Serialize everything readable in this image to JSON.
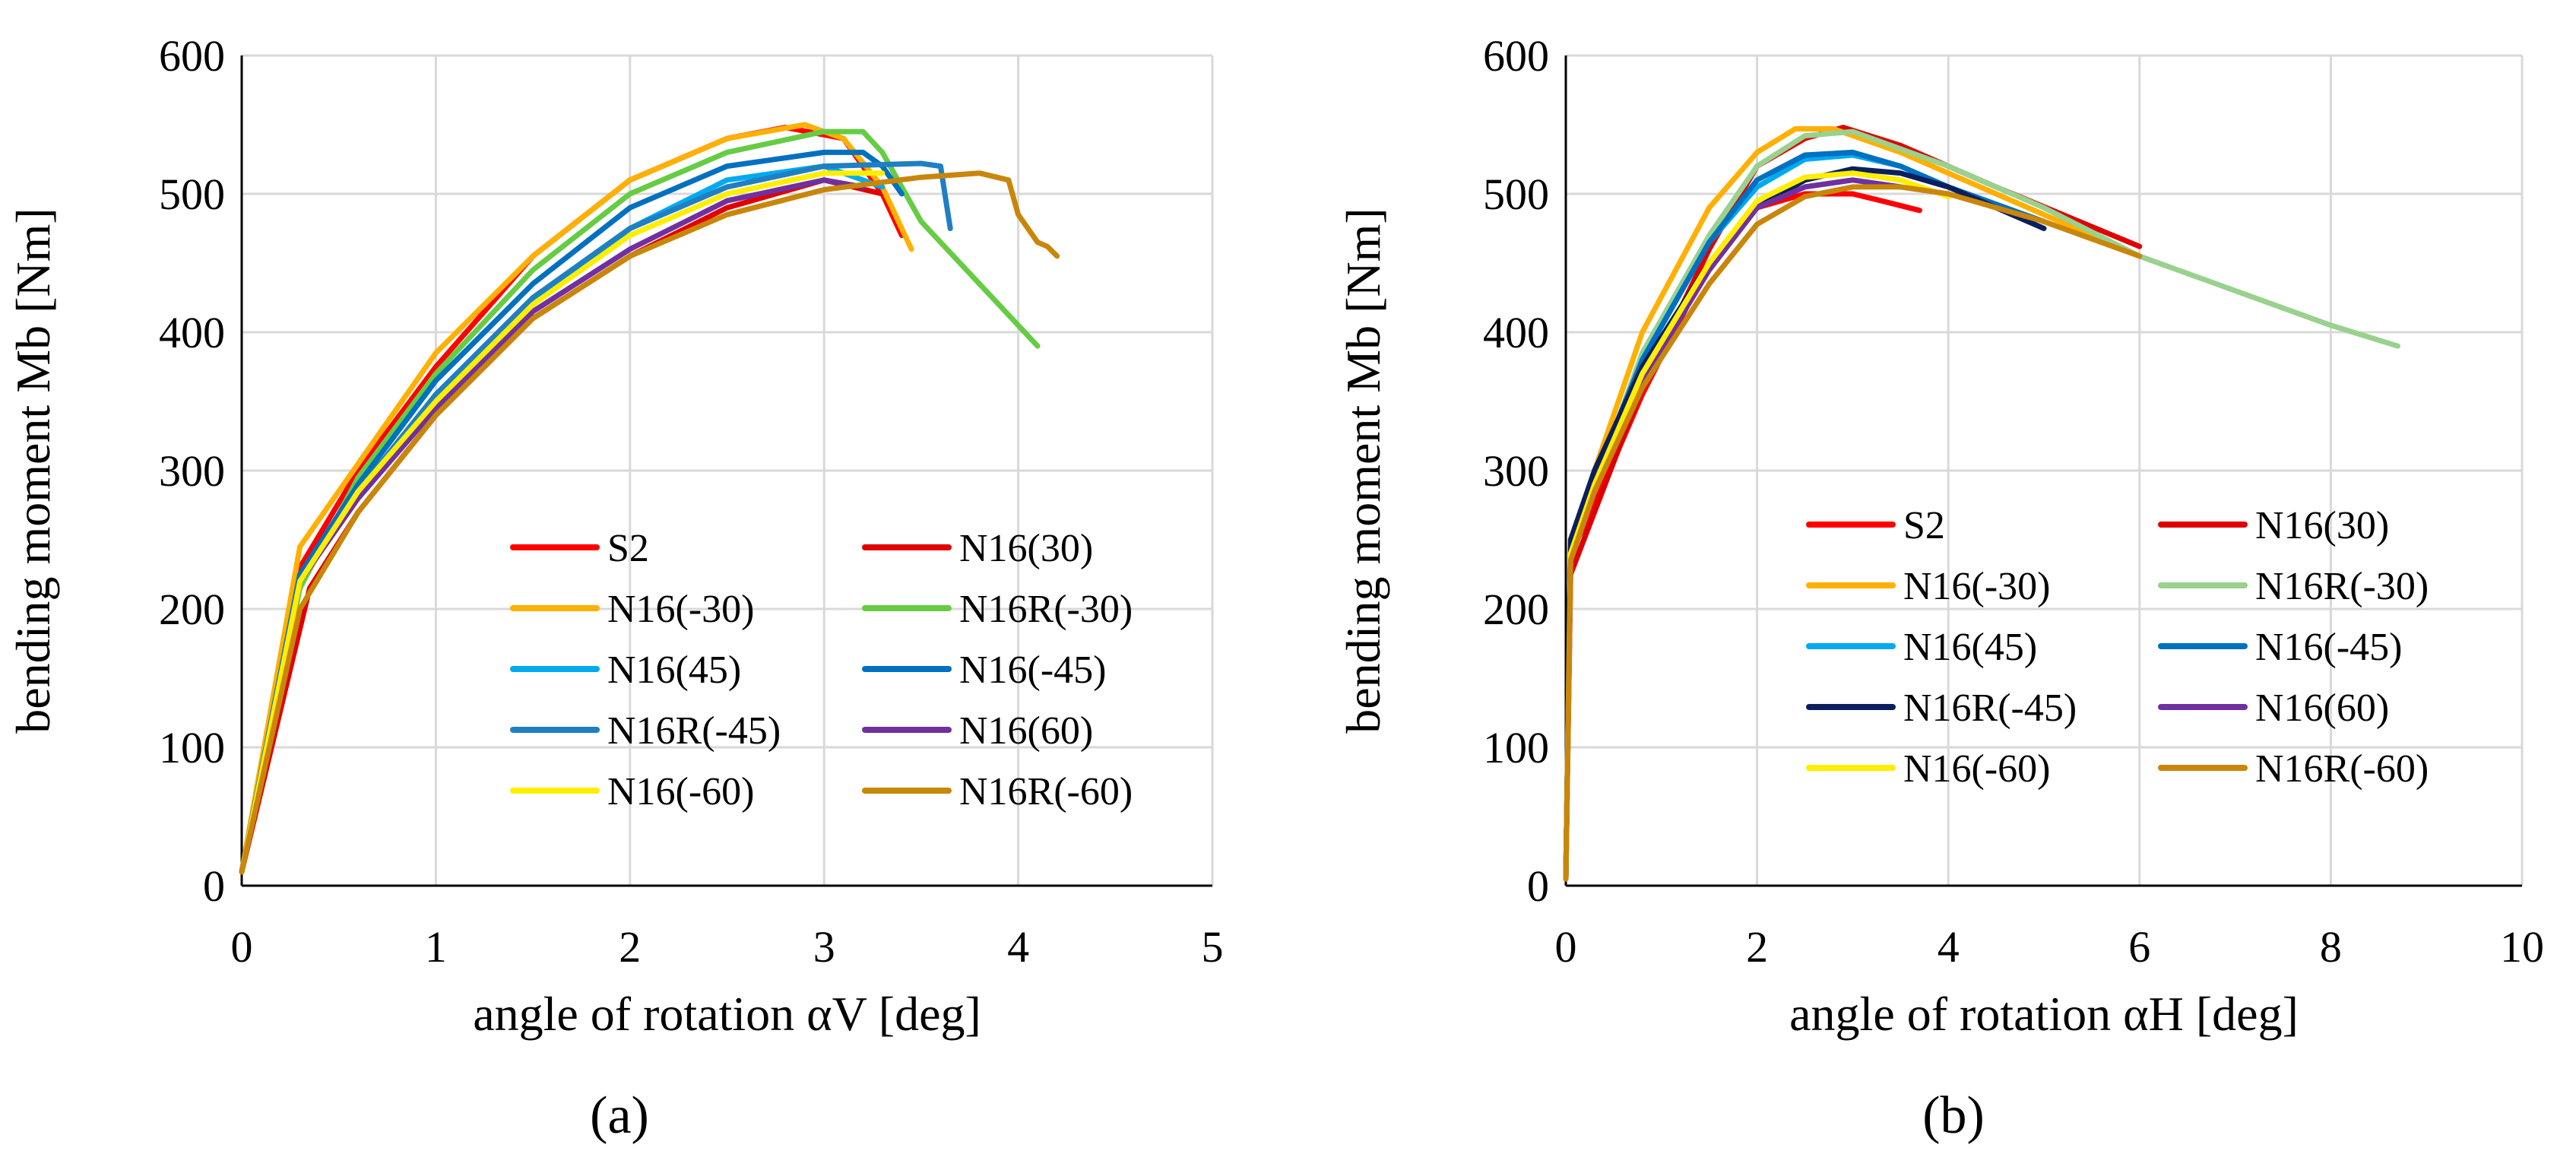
{
  "chart_data": [
    {
      "type": "line",
      "panel_label": "(a)",
      "xlabel": "angle of rotation αV [deg]",
      "ylabel": "bending moment Mb [Nm]",
      "xlim": [
        0,
        5
      ],
      "ylim": [
        0,
        600
      ],
      "xticks": [
        0,
        1,
        2,
        3,
        4,
        5
      ],
      "yticks": [
        0,
        100,
        200,
        300,
        400,
        500,
        600
      ],
      "grid": true,
      "legend": "lower-right, two columns",
      "series": [
        {
          "name": "S2",
          "color": "#ff0000",
          "x": [
            0,
            0.3,
            0.6,
            1.0,
            1.5,
            2.0,
            2.5,
            2.8,
            3.1,
            3.3,
            3.4
          ],
          "y": [
            10,
            230,
            300,
            375,
            455,
            510,
            540,
            548,
            540,
            500,
            470
          ]
        },
        {
          "name": "N16(30)",
          "color": "#e00000",
          "x": [
            0,
            0.35,
            0.6,
            1.0,
            1.5,
            2.0,
            2.5,
            3.0,
            3.3
          ],
          "y": [
            10,
            215,
            270,
            340,
            410,
            455,
            490,
            510,
            500
          ]
        },
        {
          "name": "N16(-30)",
          "color": "#ffb000",
          "x": [
            0,
            0.3,
            0.6,
            1.0,
            1.5,
            2.0,
            2.5,
            2.9,
            3.1,
            3.3,
            3.45
          ],
          "y": [
            10,
            245,
            305,
            385,
            455,
            510,
            540,
            550,
            540,
            505,
            460
          ]
        },
        {
          "name": "N16R(-30)",
          "color": "#66cc44",
          "x": [
            0,
            0.3,
            0.6,
            1.0,
            1.5,
            2.0,
            2.5,
            3.0,
            3.2,
            3.3,
            3.5,
            3.8,
            4.1
          ],
          "y": [
            10,
            215,
            295,
            370,
            445,
            500,
            530,
            545,
            545,
            530,
            480,
            435,
            390
          ]
        },
        {
          "name": "N16(45)",
          "color": "#00aaee",
          "x": [
            0,
            0.3,
            0.6,
            1.0,
            1.5,
            2.0,
            2.5,
            3.0,
            3.3
          ],
          "y": [
            10,
            225,
            285,
            355,
            420,
            475,
            510,
            520,
            505
          ]
        },
        {
          "name": "N16(-45)",
          "color": "#0070c0",
          "x": [
            0,
            0.3,
            0.6,
            1.0,
            1.5,
            2.0,
            2.5,
            3.0,
            3.2,
            3.3,
            3.4
          ],
          "y": [
            10,
            225,
            290,
            365,
            435,
            490,
            520,
            530,
            530,
            520,
            500
          ]
        },
        {
          "name": "N16R(-45)",
          "color": "#1f7fc2",
          "x": [
            0,
            0.3,
            0.6,
            1.0,
            1.5,
            2.0,
            2.5,
            3.0,
            3.5,
            3.6,
            3.65
          ],
          "y": [
            10,
            220,
            285,
            355,
            425,
            475,
            505,
            520,
            522,
            520,
            475
          ]
        },
        {
          "name": "N16(60)",
          "color": "#7030a0",
          "x": [
            0,
            0.3,
            0.6,
            1.0,
            1.5,
            2.0,
            2.5,
            3.0,
            3.2
          ],
          "y": [
            10,
            220,
            280,
            345,
            415,
            460,
            495,
            510,
            505
          ]
        },
        {
          "name": "N16(-60)",
          "color": "#ffee00",
          "x": [
            0,
            0.3,
            0.6,
            1.0,
            1.5,
            2.0,
            2.5,
            3.0,
            3.3
          ],
          "y": [
            10,
            220,
            285,
            350,
            420,
            470,
            500,
            515,
            515
          ]
        },
        {
          "name": "N16R(-60)",
          "color": "#c8860a",
          "x": [
            0,
            0.3,
            0.6,
            1.0,
            1.5,
            2.0,
            2.5,
            3.0,
            3.5,
            3.8,
            3.95,
            4.0,
            4.1,
            4.15,
            4.2
          ],
          "y": [
            10,
            200,
            270,
            340,
            410,
            455,
            485,
            503,
            512,
            515,
            510,
            485,
            465,
            462,
            455
          ]
        }
      ]
    },
    {
      "type": "line",
      "panel_label": "(b)",
      "xlabel": "angle of rotation αH [deg]",
      "ylabel": "bending moment Mb [Nm]",
      "xlim": [
        0,
        10
      ],
      "ylim": [
        0,
        600
      ],
      "xticks": [
        0,
        2,
        4,
        6,
        8,
        10
      ],
      "yticks": [
        0,
        100,
        200,
        300,
        400,
        500,
        600
      ],
      "grid": true,
      "legend": "lower-right, two columns",
      "series": [
        {
          "name": "S2",
          "color": "#ff0000",
          "x": [
            0,
            0.05,
            0.3,
            0.8,
            1.5,
            2.0,
            2.5,
            3.0,
            3.3,
            3.7
          ],
          "y": [
            5,
            240,
            275,
            355,
            450,
            490,
            500,
            500,
            495,
            488
          ]
        },
        {
          "name": "N16(30)",
          "color": "#e00000",
          "x": [
            0,
            0.05,
            0.3,
            0.8,
            1.5,
            2.0,
            2.5,
            2.9,
            3.5,
            4.5,
            6.0
          ],
          "y": [
            5,
            225,
            270,
            360,
            460,
            520,
            540,
            548,
            535,
            505,
            462
          ]
        },
        {
          "name": "N16(-30)",
          "color": "#ffb000",
          "x": [
            0,
            0.05,
            0.3,
            0.8,
            1.5,
            2.0,
            2.4,
            2.8,
            3.5,
            4.5,
            6.0
          ],
          "y": [
            5,
            245,
            300,
            400,
            490,
            530,
            547,
            547,
            530,
            500,
            455
          ]
        },
        {
          "name": "N16R(-30)",
          "color": "#99d18f",
          "x": [
            0,
            0.05,
            0.3,
            0.8,
            1.5,
            2.0,
            2.5,
            3.0,
            4.0,
            5.0,
            6.0,
            7.0,
            8.0,
            8.7
          ],
          "y": [
            5,
            240,
            290,
            385,
            470,
            520,
            542,
            545,
            520,
            490,
            455,
            430,
            405,
            390
          ]
        },
        {
          "name": "N16(45)",
          "color": "#00aaee",
          "x": [
            0,
            0.05,
            0.3,
            0.8,
            1.5,
            2.0,
            2.5,
            3.0,
            3.5,
            4.0
          ],
          "y": [
            5,
            240,
            290,
            380,
            465,
            505,
            525,
            528,
            520,
            505
          ]
        },
        {
          "name": "N16(-45)",
          "color": "#0070c0",
          "x": [
            0,
            0.05,
            0.3,
            0.8,
            1.5,
            2.0,
            2.5,
            3.0,
            3.5,
            4.0,
            5.0
          ],
          "y": [
            5,
            245,
            295,
            380,
            465,
            510,
            528,
            530,
            520,
            505,
            480
          ]
        },
        {
          "name": "N16R(-45)",
          "color": "#0b1f5e",
          "x": [
            0,
            0.05,
            0.3,
            0.8,
            1.5,
            2.0,
            2.5,
            3.0,
            3.5,
            4.0,
            5.0
          ],
          "y": [
            5,
            250,
            300,
            375,
            450,
            490,
            510,
            518,
            515,
            505,
            475
          ]
        },
        {
          "name": "N16(60)",
          "color": "#7030a0",
          "x": [
            0,
            0.05,
            0.3,
            0.8,
            1.5,
            2.0,
            2.5,
            3.0,
            3.5
          ],
          "y": [
            5,
            235,
            285,
            365,
            445,
            490,
            505,
            510,
            505
          ]
        },
        {
          "name": "N16(-60)",
          "color": "#ffee00",
          "x": [
            0,
            0.05,
            0.3,
            0.8,
            1.5,
            2.0,
            2.5,
            3.0,
            3.5,
            4.0
          ],
          "y": [
            5,
            240,
            290,
            370,
            450,
            495,
            512,
            515,
            510,
            498
          ]
        },
        {
          "name": "N16R(-60)",
          "color": "#c8860a",
          "x": [
            0,
            0.05,
            0.3,
            0.8,
            1.5,
            2.0,
            2.5,
            3.0,
            3.5,
            4.0,
            5.0,
            6.0
          ],
          "y": [
            5,
            235,
            285,
            360,
            435,
            478,
            498,
            505,
            505,
            500,
            480,
            455
          ]
        }
      ]
    }
  ]
}
